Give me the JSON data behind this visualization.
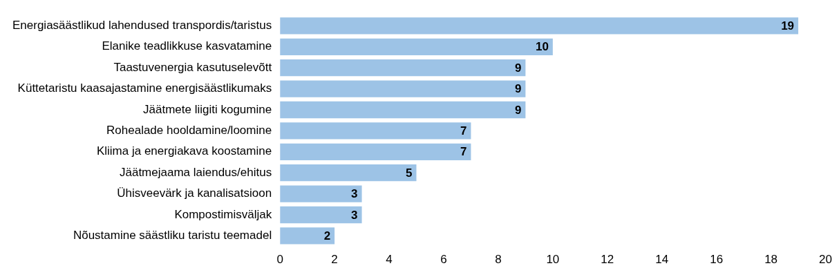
{
  "chart_data": {
    "type": "bar",
    "orientation": "horizontal",
    "categories": [
      "Energiasäästlikud lahendused transpordis/taristus",
      "Elanike teadlikkuse kasvatamine",
      "Taastuvenergia kasutuselevõtt",
      "Küttetaristu kaasajastamine energisäästlikumaks",
      "Jäätmete liigiti kogumine",
      "Rohealade hooldamine/loomine",
      "Kliima ja energiakava koostamine",
      "Jäätmejaama laiendus/ehitus",
      "Ühisveevärk ja kanalisatsioon",
      "Kompostimisväljak",
      "Nõustamine säästliku taristu teemadel"
    ],
    "values": [
      19,
      10,
      9,
      9,
      9,
      7,
      7,
      5,
      3,
      3,
      2
    ],
    "color": "#9dc3e6",
    "xlim": [
      0,
      20
    ],
    "xticks": [
      0,
      2,
      4,
      6,
      8,
      10,
      12,
      14,
      16,
      18,
      20
    ],
    "grid": false,
    "legend": false,
    "data_labels": true
  }
}
